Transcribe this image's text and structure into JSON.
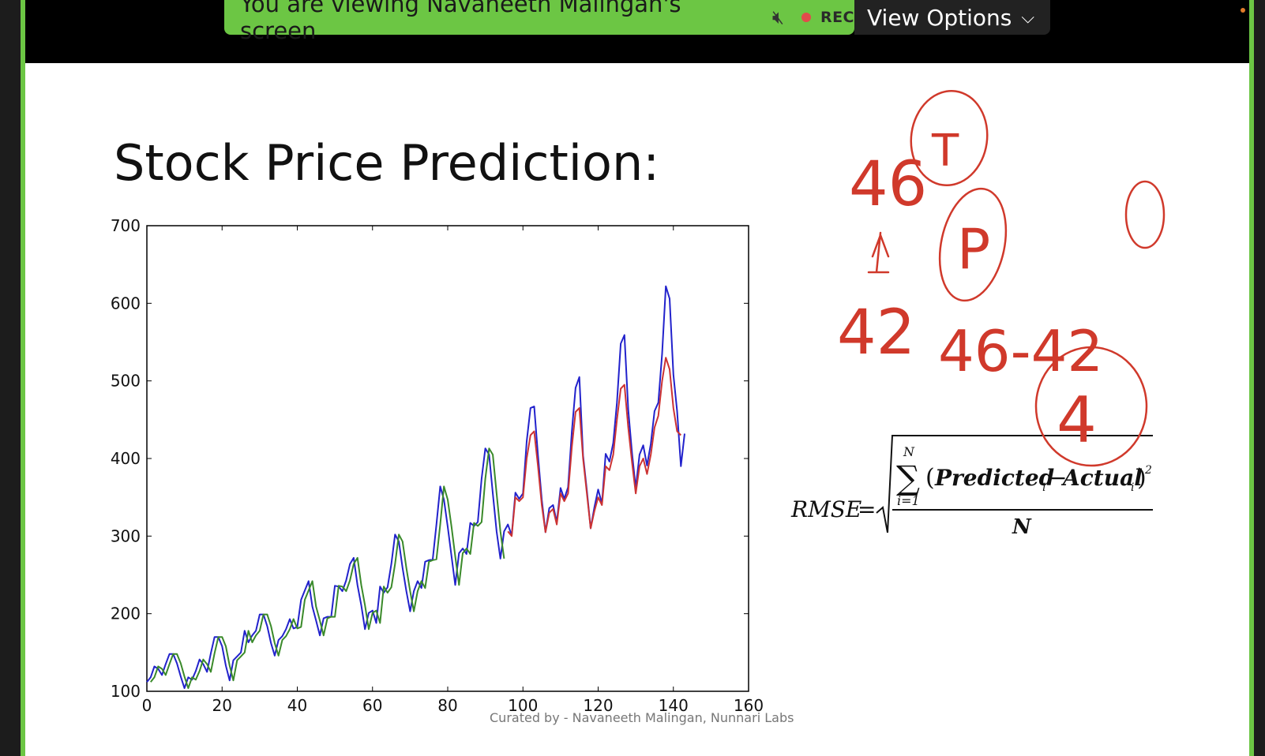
{
  "share_banner": {
    "text": "You are viewing Navaneeth Malingan's screen",
    "mic_icon": "mic-off-icon",
    "rec_label": "REC",
    "rec_color": "#e24b4b",
    "banner_color": "#6cc644"
  },
  "view_options": {
    "label": "View Options",
    "icon": "chevron-down-icon"
  },
  "slide": {
    "title": "Stock Price Prediction:",
    "caption": "Curated by - Navaneeth Malingan, Nunnari Labs"
  },
  "formula": {
    "lhs": "RMSE",
    "eq": "=",
    "sum_top": "N",
    "sum_bottom": "i=1",
    "predicted": "Predicted",
    "actual": "Actual",
    "sub": "i",
    "power": "2",
    "denominator": "N"
  },
  "annotations": {
    "color": "#d0392b",
    "texts": [
      "46",
      "T",
      "42",
      "P",
      "46-42",
      "4",
      "0"
    ]
  },
  "chart_data": {
    "type": "line",
    "title": "",
    "xlabel": "",
    "ylabel": "",
    "xlim": [
      0,
      160
    ],
    "ylim": [
      100,
      700
    ],
    "xticks": [
      0,
      20,
      40,
      60,
      80,
      100,
      120,
      140,
      160
    ],
    "yticks": [
      100,
      200,
      300,
      400,
      500,
      600,
      700
    ],
    "grid": false,
    "series": [
      {
        "color": "#2222cc",
        "x": [
          0,
          1,
          2,
          3,
          4,
          5,
          6,
          7,
          8,
          9,
          10,
          11,
          12,
          13,
          14,
          15,
          16,
          17,
          18,
          19,
          20,
          21,
          22,
          23,
          24,
          25,
          26,
          27,
          28,
          29,
          30,
          31,
          32,
          33,
          34,
          35,
          36,
          37,
          38,
          39,
          40,
          41,
          42,
          43,
          44,
          45,
          46,
          47,
          48,
          49,
          50,
          51,
          52,
          53,
          54,
          55,
          56,
          57,
          58,
          59,
          60,
          61,
          62,
          63,
          64,
          65,
          66,
          67,
          68,
          69,
          70,
          71,
          72,
          73,
          74,
          75,
          76,
          77,
          78,
          79,
          80,
          81,
          82,
          83,
          84,
          85,
          86,
          87,
          88,
          89,
          90,
          91,
          92,
          93,
          94,
          95,
          96,
          97,
          98,
          99,
          100,
          101,
          102,
          103,
          104,
          105,
          106,
          107,
          108,
          109,
          110,
          111,
          112,
          113,
          114,
          115,
          116,
          117,
          118,
          119,
          120,
          121,
          122,
          123,
          124,
          125,
          126,
          127,
          128,
          129,
          130,
          131,
          132,
          133,
          134,
          135,
          136,
          137,
          138,
          139,
          140,
          141,
          142,
          143
        ],
        "values": [
          112,
          118,
          132,
          129,
          121,
          135,
          148,
          148,
          136,
          119,
          104,
          118,
          115,
          126,
          141,
          135,
          125,
          149,
          170,
          170,
          158,
          133,
          114,
          140,
          145,
          150,
          178,
          163,
          172,
          178,
          199,
          199,
          184,
          162,
          146,
          166,
          171,
          180,
          193,
          181,
          183,
          218,
          230,
          242,
          209,
          191,
          172,
          194,
          196,
          196,
          236,
          235,
          229,
          243,
          264,
          272,
          237,
          211,
          180,
          201,
          204,
          188,
          235,
          227,
          234,
          264,
          302,
          293,
          259,
          229,
          203,
          229,
          242,
          233,
          267,
          269,
          270,
          315,
          364,
          347,
          312,
          274,
          237,
          278,
          284,
          277,
          317,
          313,
          318,
          374,
          413,
          405,
          355,
          306,
          271,
          306,
          315,
          301,
          356,
          348,
          355,
          422,
          465,
          467,
          404,
          347,
          305,
          336,
          340,
          318,
          362,
          348,
          363,
          435,
          491,
          505,
          404,
          359,
          310,
          337,
          360,
          342,
          406,
          396,
          420,
          472,
          548,
          559,
          463,
          407,
          362,
          405,
          417,
          391,
          419,
          461,
          472,
          535,
          622,
          606,
          508,
          461,
          390,
          432
        ]
      },
      {
        "color": "#3a8a2a",
        "x": [
          1,
          2,
          3,
          4,
          5,
          6,
          7,
          8,
          9,
          10,
          11,
          12,
          13,
          14,
          15,
          16,
          17,
          18,
          19,
          20,
          21,
          22,
          23,
          24,
          25,
          26,
          27,
          28,
          29,
          30,
          31,
          32,
          33,
          34,
          35,
          36,
          37,
          38,
          39,
          40,
          41,
          42,
          43,
          44,
          45,
          46,
          47,
          48,
          49,
          50,
          51,
          52,
          53,
          54,
          55,
          56,
          57,
          58,
          59,
          60,
          61,
          62,
          63,
          64,
          65,
          66,
          67,
          68,
          69,
          70,
          71,
          72,
          73,
          74,
          75,
          76,
          77,
          78,
          79,
          80,
          81,
          82,
          83,
          84,
          85,
          86,
          87,
          88,
          89,
          90,
          91,
          92,
          93,
          94,
          95
        ],
        "values": [
          112,
          118,
          132,
          129,
          121,
          135,
          148,
          148,
          136,
          119,
          104,
          118,
          115,
          126,
          141,
          135,
          125,
          149,
          170,
          170,
          158,
          133,
          114,
          140,
          145,
          150,
          178,
          163,
          172,
          178,
          199,
          199,
          184,
          162,
          146,
          166,
          171,
          180,
          193,
          181,
          183,
          218,
          230,
          242,
          209,
          191,
          172,
          194,
          196,
          196,
          236,
          235,
          229,
          243,
          264,
          272,
          237,
          211,
          180,
          201,
          204,
          188,
          235,
          227,
          234,
          264,
          302,
          293,
          259,
          229,
          203,
          229,
          242,
          233,
          267,
          269,
          270,
          315,
          364,
          347,
          312,
          274,
          237,
          278,
          284,
          277,
          317,
          313,
          318,
          374,
          413,
          405,
          355,
          306,
          271
        ]
      },
      {
        "color": "#cc3333",
        "x": [
          96,
          97,
          98,
          99,
          100,
          101,
          102,
          103,
          104,
          105,
          106,
          107,
          108,
          109,
          110,
          111,
          112,
          113,
          114,
          115,
          116,
          117,
          118,
          119,
          120,
          121,
          122,
          123,
          124,
          125,
          126,
          127,
          128,
          129,
          130,
          131,
          132,
          133,
          134,
          135,
          136,
          137,
          138,
          139,
          140,
          141,
          142
        ],
        "values": [
          306,
          300,
          350,
          345,
          350,
          400,
          430,
          435,
          390,
          340,
          305,
          330,
          335,
          315,
          355,
          345,
          355,
          415,
          460,
          465,
          400,
          355,
          310,
          332,
          350,
          340,
          390,
          385,
          405,
          450,
          490,
          495,
          440,
          395,
          355,
          390,
          400,
          380,
          405,
          440,
          455,
          500,
          530,
          515,
          465,
          435,
          430
        ]
      }
    ]
  }
}
